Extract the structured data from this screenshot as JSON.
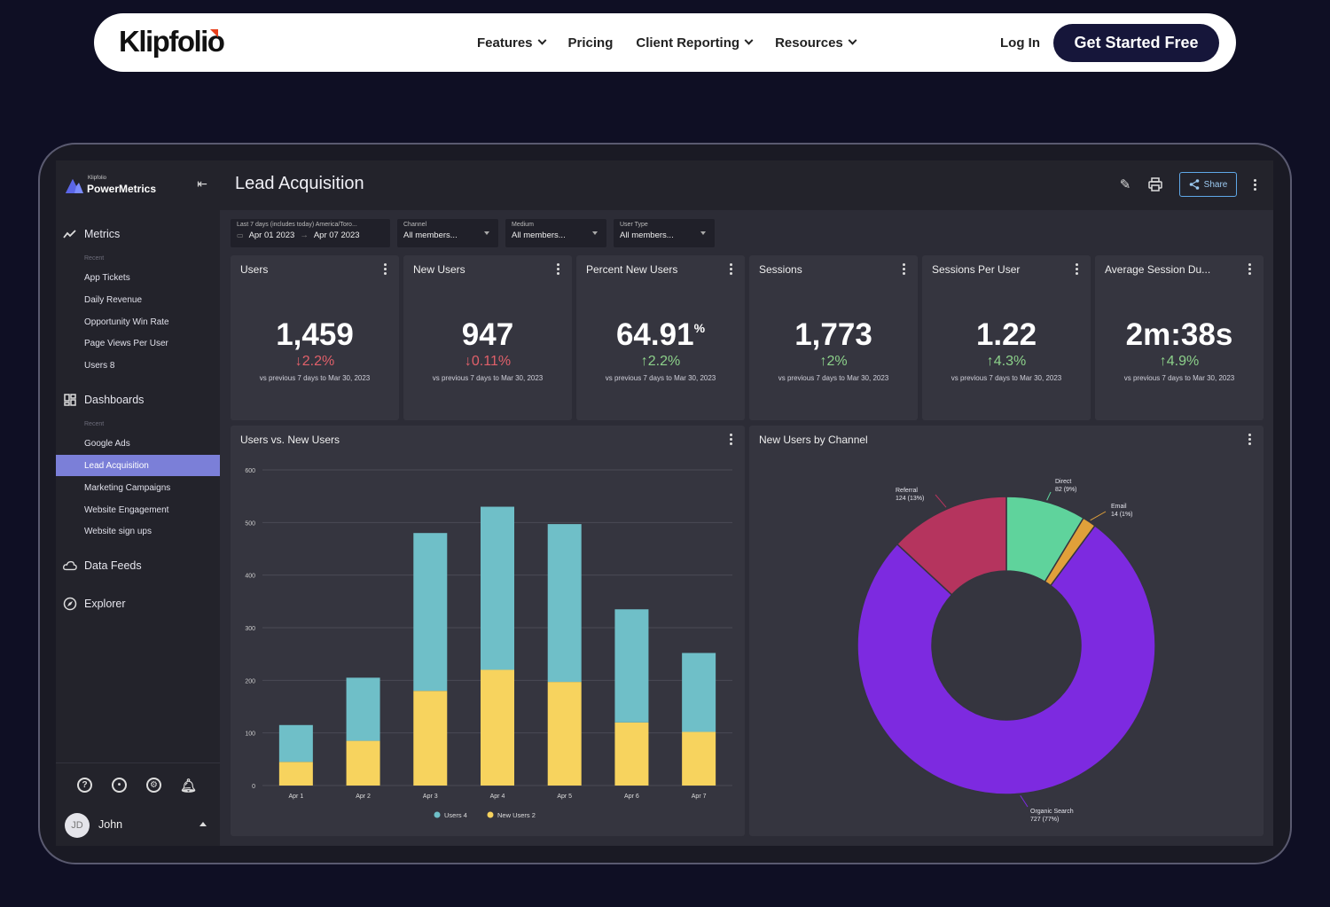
{
  "nav": {
    "logo": "Klipfolio",
    "links": [
      "Features",
      "Pricing",
      "Client Reporting",
      "Resources"
    ],
    "login": "Log In",
    "cta": "Get Started Free"
  },
  "brand": {
    "small": "Klipfolio",
    "name": "PowerMetrics"
  },
  "sidebar": {
    "metrics_label": "Metrics",
    "recent_label": "Recent",
    "metric_items": [
      "App Tickets",
      "Daily Revenue",
      "Opportunity Win Rate",
      "Page Views Per User",
      "Users 8"
    ],
    "dashboards_label": "Dashboards",
    "dashboard_items": [
      "Google Ads",
      "Lead Acquisition",
      "Marketing Campaigns",
      "Website Engagement",
      "Website sign ups"
    ],
    "data_feeds_label": "Data Feeds",
    "explorer_label": "Explorer",
    "user_initials": "JD",
    "user_name": "John"
  },
  "header": {
    "title": "Lead Acquisition",
    "share_label": "Share"
  },
  "filters": [
    {
      "label": "Last 7 days (includes today)   America/Toro...",
      "start": "Apr 01 2023",
      "end": "Apr 07 2023"
    },
    {
      "label": "Channel",
      "value": "All members..."
    },
    {
      "label": "Medium",
      "value": "All members..."
    },
    {
      "label": "User Type",
      "value": "All members..."
    }
  ],
  "kpis": [
    {
      "title": "Users",
      "value": "1,459",
      "suffix": "",
      "change": "2.2%",
      "arrow": "↓",
      "direction": "down",
      "compare": "vs previous 7 days to Mar 30, 2023"
    },
    {
      "title": "New Users",
      "value": "947",
      "suffix": "",
      "change": "0.11%",
      "arrow": "↓",
      "direction": "down",
      "compare": "vs previous 7 days to Mar 30, 2023"
    },
    {
      "title": "Percent New Users",
      "value": "64.91",
      "suffix": "%",
      "change": "2.2%",
      "arrow": "↑",
      "direction": "up",
      "compare": "vs previous 7 days to Mar 30, 2023"
    },
    {
      "title": "Sessions",
      "value": "1,773",
      "suffix": "",
      "change": "2%",
      "arrow": "↑",
      "direction": "up",
      "compare": "vs previous 7 days to Mar 30, 2023"
    },
    {
      "title": "Sessions Per User",
      "value": "1.22",
      "suffix": "",
      "change": "4.3%",
      "arrow": "↑",
      "direction": "up",
      "compare": "vs previous 7 days to Mar 30, 2023"
    },
    {
      "title": "Average Session Du...",
      "value": "2m:38s",
      "suffix": "",
      "change": "4.9%",
      "arrow": "↑",
      "direction": "up",
      "compare": "vs previous 7 days to Mar 30, 2023"
    }
  ],
  "colors": {
    "users": "#6fbfc8",
    "new_users": "#f7d35e",
    "organic": "#7d2ae0",
    "referral": "#b5345e",
    "direct": "#5fd39c",
    "email": "#e0a03a"
  },
  "chart_data": [
    {
      "type": "bar",
      "title": "Users vs. New Users",
      "stacked": true,
      "categories": [
        "Apr 1",
        "Apr 2",
        "Apr 3",
        "Apr 4",
        "Apr 5",
        "Apr 6",
        "Apr 7"
      ],
      "series": [
        {
          "name": "Users 4",
          "values": [
            70,
            120,
            300,
            310,
            300,
            215,
            150
          ]
        },
        {
          "name": "New Users 2",
          "values": [
            45,
            85,
            180,
            220,
            197,
            120,
            102
          ]
        }
      ],
      "ylim": [
        0,
        600
      ],
      "yticks": [
        "0",
        "100",
        "200",
        "300",
        "400",
        "500",
        "600"
      ],
      "legend": [
        "Users 4",
        "New Users 2"
      ]
    },
    {
      "type": "pie",
      "title": "New Users by Channel",
      "donut": true,
      "slices": [
        {
          "label": "Direct",
          "detail": "82 (9%)",
          "value": 82
        },
        {
          "label": "Email",
          "detail": "14 (1%)",
          "value": 14
        },
        {
          "label": "Organic Search",
          "detail": "727 (77%)",
          "value": 727
        },
        {
          "label": "Referral",
          "detail": "124 (13%)",
          "value": 124
        }
      ]
    }
  ]
}
